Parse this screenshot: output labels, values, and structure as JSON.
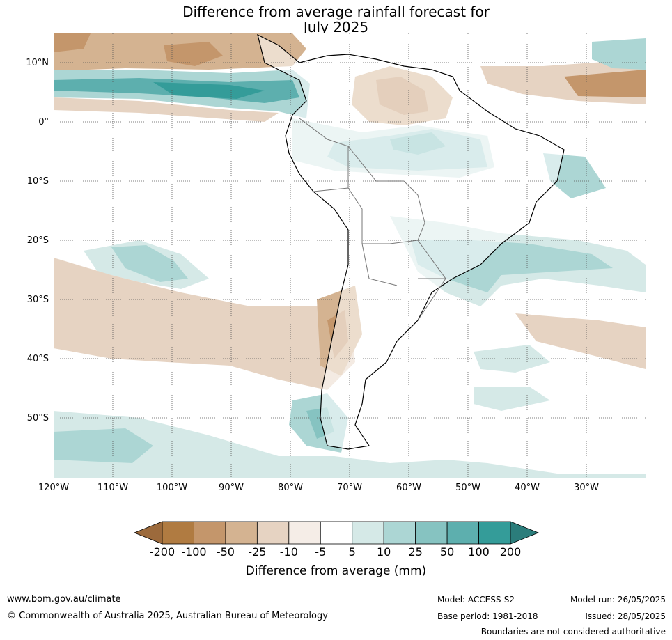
{
  "title": {
    "line1": "Difference from average rainfall forecast for",
    "line2": "July 2025"
  },
  "map": {
    "lat_labels": [
      "10°N",
      "0°",
      "10°S",
      "20°S",
      "30°S",
      "40°S",
      "50°S"
    ],
    "lon_labels": [
      "120°W",
      "110°W",
      "100°W",
      "90°W",
      "80°W",
      "70°W",
      "60°W",
      "50°W",
      "40°W",
      "30°W"
    ],
    "lat_values": [
      10,
      0,
      -10,
      -20,
      -30,
      -40,
      -50
    ],
    "lon_values": [
      -120,
      -110,
      -100,
      -90,
      -80,
      -70,
      -60,
      -50,
      -40,
      -30
    ],
    "extent": {
      "lon_min": -120,
      "lon_max": -20,
      "lat_min": -60,
      "lat_max": 15
    }
  },
  "colorbar": {
    "ticks": [
      "-200",
      "-100",
      "-50",
      "-25",
      "-10",
      "-5",
      "5",
      "10",
      "25",
      "50",
      "100",
      "200"
    ],
    "colors": [
      "#9c6a3c",
      "#b07b41",
      "#c4966b",
      "#d4b391",
      "#e6d3c2",
      "#f5ede7",
      "#ffffff",
      "#d5e9e7",
      "#acd6d4",
      "#86c3c1",
      "#5dafae",
      "#349c99",
      "#2b7d7b"
    ],
    "label": "Difference from average (mm)"
  },
  "footer": {
    "url": "www.bom.gov.au/climate",
    "copyright": "© Commonwealth of Australia 2025, Australian Bureau of Meteorology",
    "model": "Model: ACCESS-S2",
    "base_period": "Base period: 1981-2018",
    "model_run": "Model run: 26/05/2025",
    "issued": "Issued: 28/05/2025",
    "disclaimer": "Boundaries are not considered authoritative"
  }
}
